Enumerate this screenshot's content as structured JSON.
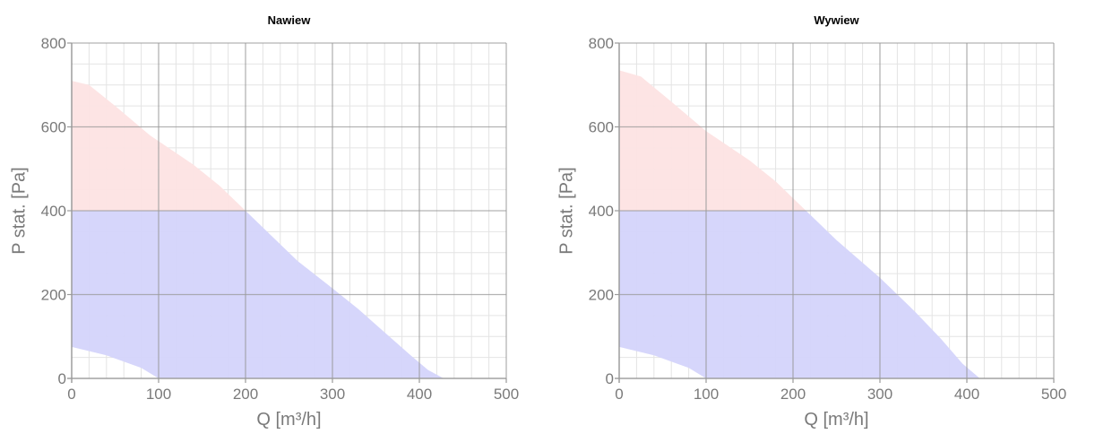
{
  "chart_data": [
    {
      "type": "area",
      "title": "Nawiew",
      "xlabel": "Q [m³/h]",
      "ylabel": "P stat. [Pa]",
      "xlim": [
        0,
        500
      ],
      "ylim": [
        0,
        800
      ],
      "xticks": [
        "0",
        "100",
        "200",
        "300",
        "400",
        "500"
      ],
      "yticks": [
        "0",
        "200",
        "400",
        "600",
        "800"
      ],
      "grid": true,
      "series": [
        {
          "color": "#fde3e3",
          "upper": [
            [
              0,
              710
            ],
            [
              20,
              700
            ],
            [
              50,
              650
            ],
            [
              90,
              580
            ],
            [
              140,
              510
            ],
            [
              170,
              460
            ],
            [
              200,
              400
            ]
          ],
          "lower": [
            [
              0,
              400
            ],
            [
              200,
              400
            ]
          ]
        },
        {
          "color": "#d4d4fb",
          "upper": [
            [
              0,
              400
            ],
            [
              200,
              400
            ],
            [
              230,
              340
            ],
            [
              260,
              280
            ],
            [
              300,
              215
            ],
            [
              330,
              165
            ],
            [
              360,
              110
            ],
            [
              390,
              55
            ],
            [
              410,
              20
            ],
            [
              428,
              0
            ]
          ],
          "lower": [
            [
              0,
              75
            ],
            [
              40,
              55
            ],
            [
              80,
              25
            ],
            [
              100,
              0
            ],
            [
              428,
              0
            ]
          ]
        }
      ]
    },
    {
      "type": "area",
      "title": "Wywiew",
      "xlabel": "Q [m³/h]",
      "ylabel": "P stat. [Pa]",
      "xlim": [
        0,
        500
      ],
      "ylim": [
        0,
        800
      ],
      "xticks": [
        "0",
        "100",
        "200",
        "300",
        "400",
        "500"
      ],
      "yticks": [
        "0",
        "200",
        "400",
        "600",
        "800"
      ],
      "grid": true,
      "series": [
        {
          "color": "#fde3e3",
          "upper": [
            [
              0,
              735
            ],
            [
              25,
              720
            ],
            [
              60,
              660
            ],
            [
              100,
              590
            ],
            [
              150,
              520
            ],
            [
              180,
              470
            ],
            [
              215,
              400
            ]
          ],
          "lower": [
            [
              0,
              400
            ],
            [
              215,
              400
            ]
          ]
        },
        {
          "color": "#d4d4fb",
          "upper": [
            [
              0,
              400
            ],
            [
              215,
              400
            ],
            [
              250,
              330
            ],
            [
              300,
              240
            ],
            [
              340,
              160
            ],
            [
              370,
              95
            ],
            [
              395,
              35
            ],
            [
              415,
              0
            ]
          ],
          "lower": [
            [
              0,
              75
            ],
            [
              40,
              55
            ],
            [
              80,
              25
            ],
            [
              100,
              0
            ],
            [
              415,
              0
            ]
          ]
        }
      ]
    }
  ]
}
